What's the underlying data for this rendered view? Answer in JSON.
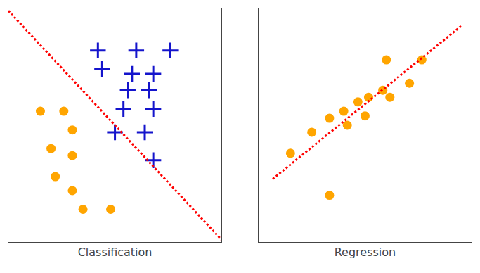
{
  "chart_data": [
    {
      "type": "scatter",
      "title": "Classification",
      "xlim": [
        0,
        1
      ],
      "ylim": [
        0,
        1
      ],
      "tick_labels": false,
      "grid": false,
      "series": [
        {
          "type": "scatter",
          "marker": "circle",
          "color": "#FFA500",
          "x": [
            0.15,
            0.26,
            0.3,
            0.2,
            0.3,
            0.22,
            0.3,
            0.35,
            0.48
          ],
          "values": [
            0.56,
            0.56,
            0.48,
            0.4,
            0.37,
            0.28,
            0.22,
            0.14,
            0.14
          ]
        },
        {
          "type": "scatter",
          "marker": "cross",
          "color": "#1414CC",
          "x": [
            0.42,
            0.6,
            0.76,
            0.44,
            0.58,
            0.68,
            0.56,
            0.66,
            0.54,
            0.68,
            0.5,
            0.64,
            0.68
          ],
          "values": [
            0.82,
            0.82,
            0.82,
            0.74,
            0.72,
            0.72,
            0.65,
            0.65,
            0.57,
            0.57,
            0.47,
            0.47,
            0.35
          ]
        },
        {
          "type": "line",
          "line_style": "dotted",
          "color": "#FF0000",
          "x": [
            0.0,
            1.0
          ],
          "values": [
            0.99,
            0.01
          ]
        }
      ]
    },
    {
      "type": "scatter",
      "title": "Regression",
      "xlim": [
        -0.1,
        1.1
      ],
      "ylim": [
        0,
        1
      ],
      "tick_labels": false,
      "grid": false,
      "series": [
        {
          "type": "scatter",
          "marker": "circle",
          "color": "#FFA500",
          "x": [
            0.08,
            0.2,
            0.3,
            0.38,
            0.4,
            0.46,
            0.5,
            0.52,
            0.6,
            0.64,
            0.75,
            0.62,
            0.82,
            0.3
          ],
          "values": [
            0.38,
            0.47,
            0.53,
            0.56,
            0.5,
            0.6,
            0.54,
            0.62,
            0.65,
            0.62,
            0.68,
            0.78,
            0.78,
            0.2
          ]
        },
        {
          "type": "line",
          "line_style": "dotted",
          "color": "#FF0000",
          "x": [
            -0.02,
            1.05
          ],
          "values": [
            0.27,
            0.93
          ]
        }
      ]
    }
  ]
}
